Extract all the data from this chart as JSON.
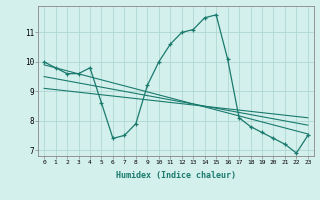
{
  "xlabel": "Humidex (Indice chaleur)",
  "bg_color": "#d4f0ec",
  "grid_color": "#b0d8d4",
  "line_color": "#1a7a6e",
  "xlim": [
    -0.5,
    23.5
  ],
  "ylim": [
    6.8,
    11.9
  ],
  "yticks": [
    7,
    8,
    9,
    10,
    11
  ],
  "xticks": [
    0,
    1,
    2,
    3,
    4,
    5,
    6,
    7,
    8,
    9,
    10,
    11,
    12,
    13,
    14,
    15,
    16,
    17,
    18,
    19,
    20,
    21,
    22,
    23
  ],
  "series1_x": [
    0,
    1,
    2,
    3,
    4,
    5,
    6,
    7,
    8,
    9,
    10,
    11,
    12,
    13,
    14,
    15,
    16,
    17,
    18,
    19,
    20,
    21,
    22,
    23
  ],
  "series1_y": [
    10.0,
    9.8,
    9.6,
    9.6,
    9.8,
    8.6,
    7.4,
    7.5,
    7.9,
    9.2,
    10.0,
    10.6,
    11.0,
    11.1,
    11.5,
    11.6,
    10.1,
    8.1,
    7.8,
    7.6,
    7.4,
    7.2,
    6.9,
    7.5
  ],
  "series2_x": [
    0,
    23
  ],
  "series2_y": [
    9.9,
    7.55
  ],
  "series3_x": [
    0,
    23
  ],
  "series3_y": [
    9.5,
    7.85
  ],
  "series4_x": [
    0,
    23
  ],
  "series4_y": [
    9.1,
    8.1
  ]
}
